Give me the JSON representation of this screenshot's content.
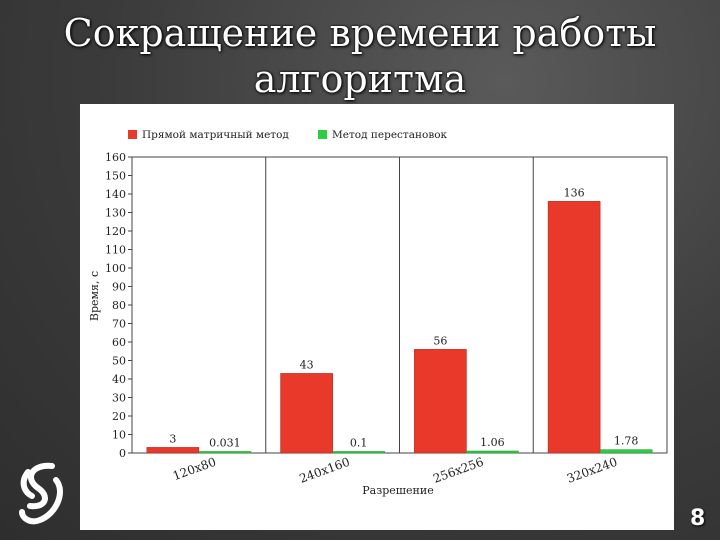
{
  "slide": {
    "title_line1": "Сокращение времени работы",
    "title_line2": "алгоритма",
    "page_number": "8"
  },
  "colors": {
    "series_1": "#e8392b",
    "series_2": "#2ecc40"
  },
  "chart_data": {
    "type": "bar",
    "title": "",
    "xlabel": "Разрешение",
    "ylabel": "Время, с",
    "ylim": [
      0,
      160
    ],
    "yticks": [
      0,
      10,
      20,
      30,
      40,
      50,
      60,
      70,
      80,
      90,
      100,
      110,
      120,
      130,
      140,
      150,
      160
    ],
    "grid": "vertical separators between categories",
    "legend_position": "top-left",
    "categories": [
      "120x80",
      "240x160",
      "256x256",
      "320x240"
    ],
    "series": [
      {
        "name": "Прямой матричный метод",
        "values": [
          3,
          43,
          56,
          136
        ],
        "labels": [
          "3",
          "43",
          "56",
          "136"
        ]
      },
      {
        "name": "Метод перестановок",
        "values": [
          0.031,
          0.1,
          1.06,
          1.78
        ],
        "labels": [
          "0.031",
          "0.1",
          "1.06",
          "1.78"
        ]
      }
    ]
  }
}
